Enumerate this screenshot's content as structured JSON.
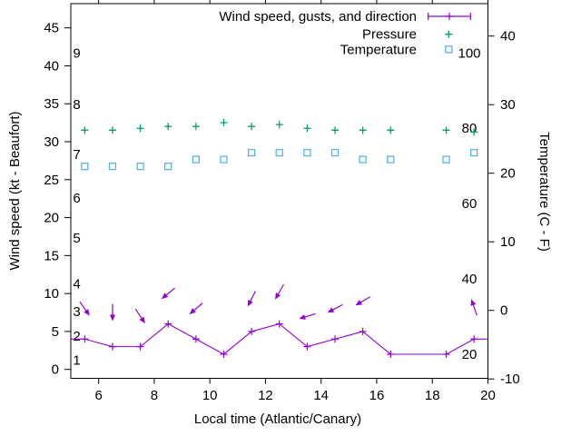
{
  "chart_data": {
    "type": "line",
    "title": "",
    "xlabel": "Local time (Atlantic/Canary)",
    "ylabel_left": "Wind speed (kt - Beaufort)",
    "ylabel_right": "Temperature (C - F)",
    "x_range": [
      5,
      20
    ],
    "x_ticks": [
      6,
      8,
      10,
      12,
      14,
      16,
      18,
      20
    ],
    "y_left_ticks": [
      0,
      5,
      10,
      15,
      20,
      25,
      30,
      35,
      40,
      45
    ],
    "y_right_ticks": [
      -10,
      0,
      10,
      20,
      30,
      40
    ],
    "beaufort_labels": [
      {
        "label": "1",
        "kt": 1.2
      },
      {
        "label": "2",
        "kt": 4.4
      },
      {
        "label": "3",
        "kt": 7.6
      },
      {
        "label": "4",
        "kt": 11.3
      },
      {
        "label": "5",
        "kt": 17.3
      },
      {
        "label": "6",
        "kt": 22.6
      },
      {
        "label": "7",
        "kt": 28.3
      },
      {
        "label": "8",
        "kt": 34.9
      },
      {
        "label": "9",
        "kt": 41.7
      }
    ],
    "pressure_scale_labels": [
      20,
      40,
      60,
      80,
      100
    ],
    "legend": [
      {
        "label": "Wind speed, gusts, and direction",
        "series": "wind"
      },
      {
        "label": "Pressure",
        "series": "pressure"
      },
      {
        "label": "Temperature",
        "series": "temperature"
      }
    ],
    "colors": {
      "wind": "#9400d3",
      "pressure": "#009e73",
      "temperature": "#56b4e9"
    },
    "hours": [
      5.5,
      6.5,
      7.5,
      8.5,
      9.5,
      10.5,
      11.5,
      12.5,
      13.5,
      14.5,
      15.5,
      16.5,
      18.5,
      19.5
    ],
    "wind_speed_kt": [
      4,
      3,
      3,
      6,
      4,
      2,
      5,
      6,
      3,
      4,
      5,
      2,
      2,
      4
    ],
    "wind_line_extension": {
      "start": [
        5,
        4
      ],
      "end": [
        20,
        4
      ]
    },
    "gusts": [
      {
        "x": 5.5,
        "kt": 8,
        "angle_deg": 55
      },
      {
        "x": 6.5,
        "kt": 7.5,
        "angle_deg": 90
      },
      {
        "x": 7.5,
        "kt": 7,
        "angle_deg": 56
      },
      {
        "x": 8.5,
        "kt": 10,
        "angle_deg": 141
      },
      {
        "x": 9.5,
        "kt": 8,
        "angle_deg": 140
      },
      {
        "x": 11.5,
        "kt": 9.3,
        "angle_deg": 117
      },
      {
        "x": 12.5,
        "kt": 10.2,
        "angle_deg": 120
      },
      {
        "x": 13.5,
        "kt": 7,
        "angle_deg": 163
      },
      {
        "x": 14.5,
        "kt": 8,
        "angle_deg": 152
      },
      {
        "x": 15.5,
        "kt": 9,
        "angle_deg": 150
      },
      {
        "x": 19.5,
        "kt": 8.2,
        "angle_deg": 251
      }
    ],
    "pressure_scale_values": [
      79.5,
      79.5,
      80,
      80.5,
      80.5,
      81.5,
      80.5,
      81,
      80,
      79.5,
      79.5,
      79.5,
      79.5,
      79
    ],
    "temperature_c": [
      21,
      21,
      21,
      21,
      22,
      22,
      23,
      23,
      23,
      23,
      22,
      22,
      22,
      23
    ]
  }
}
